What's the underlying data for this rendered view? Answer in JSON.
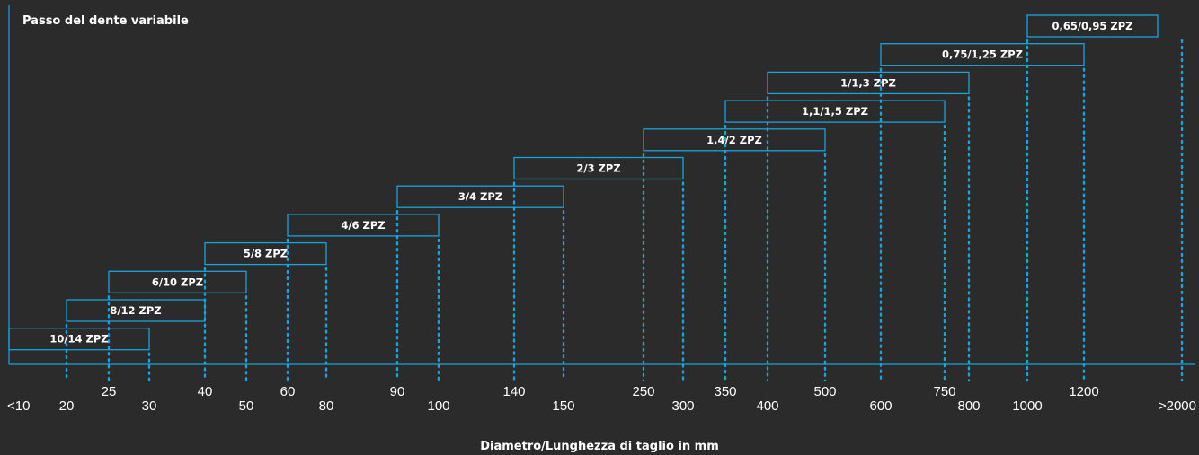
{
  "chart_data": {
    "type": "range-bar",
    "ylabel": "Passo del dente variabile",
    "xlabel": "Diametro/Lunghezza di taglio in mm",
    "ticks": [
      {
        "label": "<10",
        "row": "low"
      },
      {
        "label": "20",
        "row": "low"
      },
      {
        "label": "25",
        "row": "high"
      },
      {
        "label": "30",
        "row": "low"
      },
      {
        "label": "40",
        "row": "high"
      },
      {
        "label": "50",
        "row": "low"
      },
      {
        "label": "60",
        "row": "high"
      },
      {
        "label": "80",
        "row": "low"
      },
      {
        "label": "90",
        "row": "high"
      },
      {
        "label": "100",
        "row": "low"
      },
      {
        "label": "140",
        "row": "high"
      },
      {
        "label": "150",
        "row": "low"
      },
      {
        "label": "250",
        "row": "high"
      },
      {
        "label": "300",
        "row": "low"
      },
      {
        "label": "350",
        "row": "high"
      },
      {
        "label": "400",
        "row": "low"
      },
      {
        "label": "500",
        "row": "high"
      },
      {
        "label": "600",
        "row": "low"
      },
      {
        "label": "750",
        "row": "high"
      },
      {
        "label": "800",
        "row": "low"
      },
      {
        "label": "1000",
        "row": "low"
      },
      {
        "label": "1200",
        "row": "high"
      },
      {
        "label": ">2000",
        "row": "low"
      }
    ],
    "ranges": [
      {
        "label": "10/14 ZPZ",
        "from": "<10",
        "to": "30"
      },
      {
        "label": "8/12 ZPZ",
        "from": "20",
        "to": "40"
      },
      {
        "label": "6/10 ZPZ",
        "from": "25",
        "to": "50"
      },
      {
        "label": "5/8 ZPZ",
        "from": "40",
        "to": "80"
      },
      {
        "label": "4/6 ZPZ",
        "from": "60",
        "to": "100"
      },
      {
        "label": "3/4 ZPZ",
        "from": "90",
        "to": "150"
      },
      {
        "label": "2/3 ZPZ",
        "from": "140",
        "to": "300"
      },
      {
        "label": "1,4/2 ZPZ",
        "from": "250",
        "to": "500"
      },
      {
        "label": "1,1/1,5 ZPZ",
        "from": "350",
        "to": "750"
      },
      {
        "label": "1/1,3 ZPZ",
        "from": "400",
        "to": "800"
      },
      {
        "label": "0,75/1,25 ZPZ",
        "from": "600",
        "to": "1200"
      },
      {
        "label": "0,65/0,95 ZPZ",
        "from": "1000",
        "to": ">2000"
      }
    ],
    "colors": {
      "background": "#2b2b2b",
      "accent": "#1aa3db",
      "text": "#ffffff"
    }
  }
}
